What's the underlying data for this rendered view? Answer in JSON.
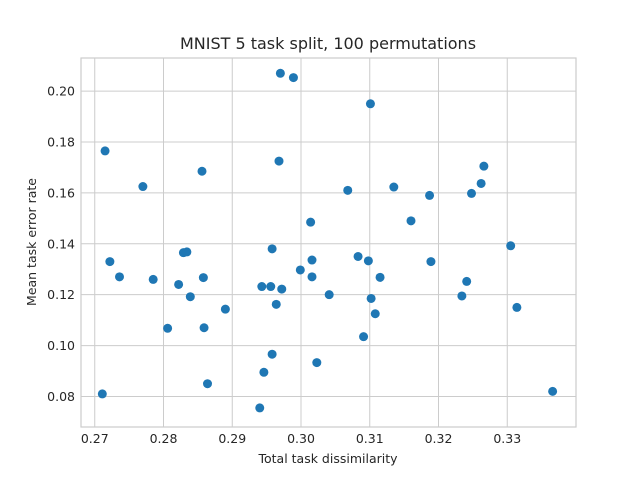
{
  "chart_data": {
    "type": "scatter",
    "title": "MNIST 5 task split, 100 permutations",
    "xlabel": "Total task dissimilarity",
    "ylabel": "Mean task error rate",
    "xlim": [
      0.268,
      0.34
    ],
    "ylim": [
      0.068,
      0.213
    ],
    "xticks": [
      "0.27",
      "0.28",
      "0.29",
      "0.30",
      "0.31",
      "0.32",
      "0.33"
    ],
    "yticks": [
      "0.08",
      "0.10",
      "0.12",
      "0.14",
      "0.16",
      "0.18",
      "0.20"
    ],
    "grid": true,
    "color": "#1f77b4",
    "points": [
      [
        0.2715,
        0.1765
      ],
      [
        0.2722,
        0.133
      ],
      [
        0.2736,
        0.127
      ],
      [
        0.2711,
        0.081
      ],
      [
        0.277,
        0.1625
      ],
      [
        0.2785,
        0.126
      ],
      [
        0.2806,
        0.1068
      ],
      [
        0.2822,
        0.124
      ],
      [
        0.2829,
        0.1365
      ],
      [
        0.2834,
        0.1368
      ],
      [
        0.2839,
        0.1192
      ],
      [
        0.2856,
        0.1685
      ],
      [
        0.2858,
        0.1267
      ],
      [
        0.2859,
        0.107
      ],
      [
        0.2864,
        0.085
      ],
      [
        0.289,
        0.1143
      ],
      [
        0.294,
        0.0755
      ],
      [
        0.2943,
        0.1232
      ],
      [
        0.2946,
        0.0895
      ],
      [
        0.2956,
        0.1232
      ],
      [
        0.2958,
        0.138
      ],
      [
        0.2958,
        0.0966
      ],
      [
        0.2964,
        0.1162
      ],
      [
        0.2968,
        0.1725
      ],
      [
        0.297,
        0.207
      ],
      [
        0.2972,
        0.1222
      ],
      [
        0.2989,
        0.2053
      ],
      [
        0.2999,
        0.1297
      ],
      [
        0.3014,
        0.1485
      ],
      [
        0.3016,
        0.1336
      ],
      [
        0.3016,
        0.127
      ],
      [
        0.3023,
        0.0933
      ],
      [
        0.3041,
        0.12
      ],
      [
        0.3068,
        0.161
      ],
      [
        0.3083,
        0.135
      ],
      [
        0.3091,
        0.1035
      ],
      [
        0.3098,
        0.1333
      ],
      [
        0.3101,
        0.195
      ],
      [
        0.3102,
        0.1185
      ],
      [
        0.3108,
        0.1125
      ],
      [
        0.3115,
        0.1268
      ],
      [
        0.3135,
        0.1623
      ],
      [
        0.316,
        0.149
      ],
      [
        0.3187,
        0.159
      ],
      [
        0.3189,
        0.133
      ],
      [
        0.3234,
        0.1195
      ],
      [
        0.3241,
        0.1252
      ],
      [
        0.3248,
        0.1598
      ],
      [
        0.3262,
        0.1637
      ],
      [
        0.3266,
        0.1705
      ],
      [
        0.3305,
        0.1392
      ],
      [
        0.3314,
        0.115
      ],
      [
        0.3366,
        0.082
      ]
    ]
  }
}
